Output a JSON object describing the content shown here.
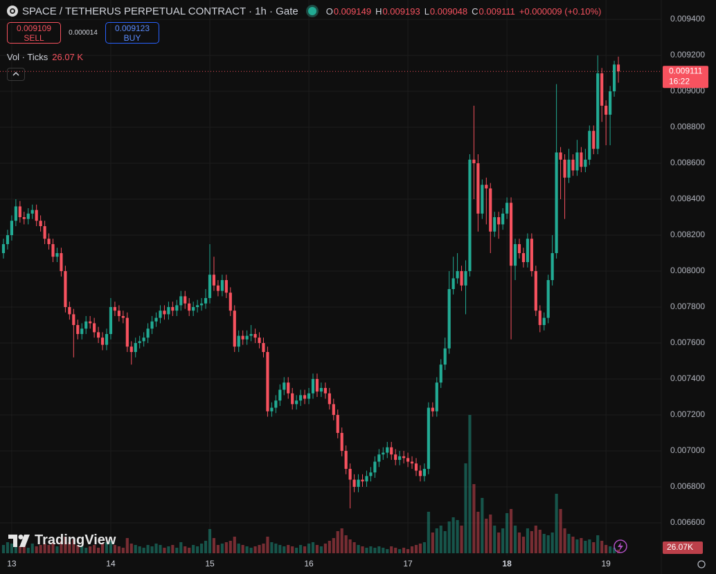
{
  "header": {
    "symbol": "SPACE / TETHERUS PERPETUAL CONTRACT · 1h · Gate",
    "ohlc": [
      {
        "label": "O",
        "value": "0.009149"
      },
      {
        "label": "H",
        "value": "0.009193"
      },
      {
        "label": "L",
        "value": "0.009048"
      },
      {
        "label": "C",
        "value": "0.009111"
      }
    ],
    "change": "+0.000009 (+0.10%)"
  },
  "trade": {
    "sell_price": "0.009109",
    "sell_label": "SELL",
    "spread": "0.000014",
    "buy_price": "0.009123",
    "buy_label": "BUY"
  },
  "volume_legend": {
    "label": "Vol · Ticks",
    "value": "26.07 K"
  },
  "last_price": {
    "price": "0.009111",
    "countdown": "16:22"
  },
  "volume_tag": "26.07K",
  "watermark": "TradingView",
  "chart_data": {
    "type": "candlestick",
    "grid": true,
    "up_color": "#22ab94",
    "down_color": "#f7525f",
    "xlim": [
      -0.84,
      159.4
    ],
    "xticks": [
      {
        "value": 2,
        "label": "13"
      },
      {
        "value": 26,
        "label": "14"
      },
      {
        "value": 50,
        "label": "15"
      },
      {
        "value": 74,
        "label": "16"
      },
      {
        "value": 98,
        "label": "17"
      },
      {
        "value": 122,
        "label": "18"
      },
      {
        "value": 146,
        "label": "19"
      }
    ],
    "ylim": [
      0.006419,
      0.009508
    ],
    "yticks": [
      {
        "value": 0.0066,
        "label": "0.006600"
      },
      {
        "value": 0.0068,
        "label": "0.006800"
      },
      {
        "value": 0.007,
        "label": "0.007000"
      },
      {
        "value": 0.0072,
        "label": "0.007200"
      },
      {
        "value": 0.0074,
        "label": "0.007400"
      },
      {
        "value": 0.0076,
        "label": "0.007600"
      },
      {
        "value": 0.0078,
        "label": "0.007800"
      },
      {
        "value": 0.008,
        "label": "0.008000"
      },
      {
        "value": 0.0082,
        "label": "0.008200"
      },
      {
        "value": 0.0084,
        "label": "0.008400"
      },
      {
        "value": 0.0086,
        "label": "0.008600"
      },
      {
        "value": 0.0088,
        "label": "0.008800"
      },
      {
        "value": 0.009,
        "label": "0.009000"
      },
      {
        "value": 0.0092,
        "label": "0.009200"
      },
      {
        "value": 0.0094,
        "label": "0.009400"
      }
    ],
    "open": [
      0.0081,
      0.00815,
      0.0082,
      0.00828,
      0.00836,
      0.0083,
      0.00829,
      0.00832,
      0.00834,
      0.00828,
      0.00825,
      0.00818,
      0.00815,
      0.00808,
      0.0081,
      0.008,
      0.0078,
      0.00776,
      0.0077,
      0.00765,
      0.00768,
      0.00772,
      0.00771,
      0.00766,
      0.00763,
      0.00759,
      0.00765,
      0.0078,
      0.00778,
      0.00775,
      0.00774,
      0.00758,
      0.00755,
      0.0076,
      0.00761,
      0.00763,
      0.00768,
      0.00772,
      0.00774,
      0.00778,
      0.00776,
      0.0078,
      0.00778,
      0.00781,
      0.00786,
      0.00782,
      0.00778,
      0.0078,
      0.00781,
      0.00782,
      0.00785,
      0.00798,
      0.00792,
      0.00789,
      0.00795,
      0.00788,
      0.00778,
      0.00758,
      0.00764,
      0.00762,
      0.00764,
      0.00765,
      0.00763,
      0.0076,
      0.00755,
      0.00722,
      0.00724,
      0.00728,
      0.00734,
      0.00738,
      0.00732,
      0.00726,
      0.00728,
      0.00731,
      0.00729,
      0.00732,
      0.0074,
      0.00733,
      0.00735,
      0.00732,
      0.00726,
      0.0072,
      0.0071,
      0.007,
      0.0069,
      0.00684,
      0.0068,
      0.00684,
      0.00683,
      0.00686,
      0.00688,
      0.00694,
      0.00698,
      0.00699,
      0.00702,
      0.00698,
      0.00695,
      0.00697,
      0.00696,
      0.00694,
      0.00693,
      0.00689,
      0.00686,
      0.0069,
      0.00724,
      0.00722,
      0.00738,
      0.00748,
      0.00757,
      0.0079,
      0.00796,
      0.008,
      0.00792,
      0.008,
      0.00862,
      0.0086,
      0.00832,
      0.00848,
      0.00846,
      0.00822,
      0.0083,
      0.00826,
      0.00832,
      0.00838,
      0.00803,
      0.00815,
      0.0081,
      0.00805,
      0.00818,
      0.008,
      0.00778,
      0.0077,
      0.00774,
      0.00795,
      0.0081,
      0.00866,
      0.00862,
      0.00852,
      0.00862,
      0.00856,
      0.00866,
      0.00858,
      0.00862,
      0.00878,
      0.00868,
      0.0091,
      0.00892,
      0.00887,
      0.009,
      0.009149
    ],
    "high": [
      0.00818,
      0.00823,
      0.00831,
      0.0084,
      0.00839,
      0.00833,
      0.00835,
      0.00837,
      0.00837,
      0.00831,
      0.00828,
      0.00821,
      0.00818,
      0.00813,
      0.00813,
      0.00803,
      0.00783,
      0.00779,
      0.00773,
      0.00771,
      0.00775,
      0.00775,
      0.00774,
      0.00769,
      0.00766,
      0.00768,
      0.00785,
      0.00783,
      0.00781,
      0.00778,
      0.00777,
      0.00761,
      0.00763,
      0.00764,
      0.00766,
      0.00771,
      0.00775,
      0.00777,
      0.00781,
      0.00781,
      0.00783,
      0.00783,
      0.00784,
      0.00789,
      0.00789,
      0.00785,
      0.00783,
      0.00784,
      0.00785,
      0.0079,
      0.00815,
      0.00808,
      0.00795,
      0.00798,
      0.00798,
      0.00791,
      0.00781,
      0.00767,
      0.00767,
      0.00767,
      0.0077,
      0.00768,
      0.00766,
      0.00763,
      0.00758,
      0.00727,
      0.00731,
      0.00737,
      0.00741,
      0.00741,
      0.00735,
      0.00731,
      0.00734,
      0.00734,
      0.00735,
      0.00743,
      0.00743,
      0.00738,
      0.00738,
      0.00735,
      0.00729,
      0.00723,
      0.00713,
      0.00703,
      0.00693,
      0.00687,
      0.00687,
      0.00687,
      0.00689,
      0.00691,
      0.00697,
      0.00701,
      0.00702,
      0.00705,
      0.00705,
      0.00701,
      0.007,
      0.007,
      0.00699,
      0.00697,
      0.00696,
      0.00692,
      0.00693,
      0.00727,
      0.00727,
      0.00741,
      0.00751,
      0.00763,
      0.008,
      0.00808,
      0.0081,
      0.00803,
      0.00806,
      0.00865,
      0.00892,
      0.00865,
      0.00851,
      0.00852,
      0.00849,
      0.00833,
      0.00833,
      0.00835,
      0.00841,
      0.00841,
      0.00818,
      0.00818,
      0.00813,
      0.00821,
      0.00821,
      0.00803,
      0.00781,
      0.00777,
      0.00798,
      0.0082,
      0.00904,
      0.00869,
      0.00865,
      0.00868,
      0.00865,
      0.00873,
      0.00869,
      0.00868,
      0.00881,
      0.00881,
      0.0092,
      0.00913,
      0.00895,
      0.00903,
      0.00917,
      0.009193
    ],
    "low": [
      0.00807,
      0.00812,
      0.00817,
      0.00825,
      0.00827,
      0.00826,
      0.00826,
      0.00829,
      0.00825,
      0.00822,
      0.00815,
      0.00812,
      0.00805,
      0.00805,
      0.00797,
      0.00777,
      0.00773,
      0.00752,
      0.00762,
      0.00762,
      0.00765,
      0.00768,
      0.00763,
      0.0076,
      0.00756,
      0.00756,
      0.00762,
      0.00775,
      0.00772,
      0.00771,
      0.00755,
      0.00748,
      0.00752,
      0.00757,
      0.00758,
      0.0076,
      0.00765,
      0.00769,
      0.00771,
      0.00773,
      0.00773,
      0.00775,
      0.00775,
      0.00778,
      0.00779,
      0.00775,
      0.00775,
      0.00777,
      0.00778,
      0.00779,
      0.00782,
      0.00789,
      0.00786,
      0.00786,
      0.00785,
      0.00775,
      0.00755,
      0.00755,
      0.00759,
      0.00759,
      0.00761,
      0.0076,
      0.00757,
      0.00752,
      0.00719,
      0.00719,
      0.00721,
      0.00725,
      0.00731,
      0.00729,
      0.00723,
      0.00723,
      0.00725,
      0.00726,
      0.00726,
      0.00729,
      0.0073,
      0.0073,
      0.00729,
      0.00723,
      0.00717,
      0.00707,
      0.00697,
      0.00687,
      0.00668,
      0.00677,
      0.00677,
      0.0068,
      0.0068,
      0.00683,
      0.00685,
      0.00691,
      0.00695,
      0.00696,
      0.00695,
      0.00692,
      0.00692,
      0.00693,
      0.00691,
      0.0069,
      0.00686,
      0.00683,
      0.00683,
      0.00687,
      0.00719,
      0.00719,
      0.00735,
      0.00745,
      0.00754,
      0.00787,
      0.00793,
      0.00789,
      0.00776,
      0.00797,
      0.0084,
      0.00822,
      0.00829,
      0.00826,
      0.0081,
      0.00819,
      0.00818,
      0.00823,
      0.00829,
      0.00762,
      0.00795,
      0.00807,
      0.00802,
      0.00802,
      0.00797,
      0.00775,
      0.00766,
      0.00767,
      0.00771,
      0.00792,
      0.00807,
      0.0084,
      0.00829,
      0.00849,
      0.00853,
      0.00853,
      0.00855,
      0.00855,
      0.00859,
      0.00865,
      0.00865,
      0.00883,
      0.0087,
      0.0087,
      0.00897,
      0.009048
    ],
    "close": [
      0.00815,
      0.0082,
      0.00828,
      0.00836,
      0.0083,
      0.00829,
      0.00832,
      0.00834,
      0.00828,
      0.00825,
      0.00818,
      0.00815,
      0.00808,
      0.0081,
      0.008,
      0.0078,
      0.00776,
      0.0077,
      0.00765,
      0.00768,
      0.00772,
      0.00771,
      0.00766,
      0.00763,
      0.00759,
      0.00765,
      0.0078,
      0.00778,
      0.00775,
      0.00774,
      0.00758,
      0.00755,
      0.0076,
      0.00761,
      0.00763,
      0.00768,
      0.00772,
      0.00774,
      0.00778,
      0.00776,
      0.0078,
      0.00778,
      0.00781,
      0.00786,
      0.00782,
      0.00778,
      0.0078,
      0.00781,
      0.00782,
      0.00785,
      0.00798,
      0.00792,
      0.00789,
      0.00795,
      0.00788,
      0.00778,
      0.00758,
      0.00764,
      0.00762,
      0.00764,
      0.00765,
      0.00763,
      0.0076,
      0.00755,
      0.00722,
      0.00724,
      0.00728,
      0.00734,
      0.00738,
      0.00732,
      0.00726,
      0.00728,
      0.00731,
      0.00729,
      0.00732,
      0.0074,
      0.00733,
      0.00735,
      0.00732,
      0.00726,
      0.0072,
      0.0071,
      0.007,
      0.0069,
      0.00684,
      0.0068,
      0.00684,
      0.00683,
      0.00686,
      0.00688,
      0.00694,
      0.00698,
      0.00699,
      0.00702,
      0.00698,
      0.00695,
      0.00697,
      0.00696,
      0.00694,
      0.00693,
      0.00689,
      0.00686,
      0.0069,
      0.00724,
      0.00722,
      0.00738,
      0.00748,
      0.00757,
      0.0079,
      0.00796,
      0.008,
      0.00792,
      0.008,
      0.00862,
      0.0086,
      0.00832,
      0.00848,
      0.00846,
      0.00822,
      0.0083,
      0.00826,
      0.00832,
      0.00838,
      0.00803,
      0.00815,
      0.0081,
      0.00805,
      0.00818,
      0.008,
      0.00778,
      0.0077,
      0.00774,
      0.00795,
      0.0081,
      0.00866,
      0.00862,
      0.00852,
      0.00862,
      0.00856,
      0.00866,
      0.00858,
      0.00862,
      0.00878,
      0.00868,
      0.0091,
      0.00892,
      0.00887,
      0.009,
      0.009149,
      0.009111
    ],
    "volume": [
      60,
      80,
      70,
      90,
      50,
      60,
      40,
      70,
      50,
      60,
      70,
      60,
      80,
      50,
      90,
      120,
      80,
      100,
      60,
      50,
      40,
      50,
      60,
      40,
      70,
      80,
      90,
      60,
      50,
      40,
      110,
      70,
      60,
      50,
      40,
      60,
      50,
      70,
      60,
      40,
      50,
      60,
      40,
      80,
      50,
      40,
      60,
      50,
      70,
      90,
      175,
      110,
      60,
      70,
      80,
      90,
      120,
      70,
      60,
      50,
      40,
      50,
      60,
      70,
      120,
      80,
      70,
      60,
      50,
      60,
      50,
      40,
      60,
      50,
      70,
      80,
      60,
      50,
      70,
      90,
      110,
      160,
      180,
      130,
      100,
      80,
      60,
      50,
      40,
      50,
      40,
      50,
      40,
      30,
      50,
      40,
      30,
      40,
      30,
      50,
      60,
      70,
      80,
      300,
      150,
      180,
      200,
      160,
      230,
      260,
      240,
      200,
      650,
      1000,
      500,
      300,
      400,
      250,
      280,
      200,
      150,
      180,
      290,
      320,
      200,
      150,
      120,
      180,
      160,
      200,
      170,
      140,
      130,
      150,
      430,
      320,
      180,
      140,
      120,
      100,
      110,
      90,
      100,
      80,
      130,
      90,
      60,
      50,
      40,
      26.07
    ]
  }
}
